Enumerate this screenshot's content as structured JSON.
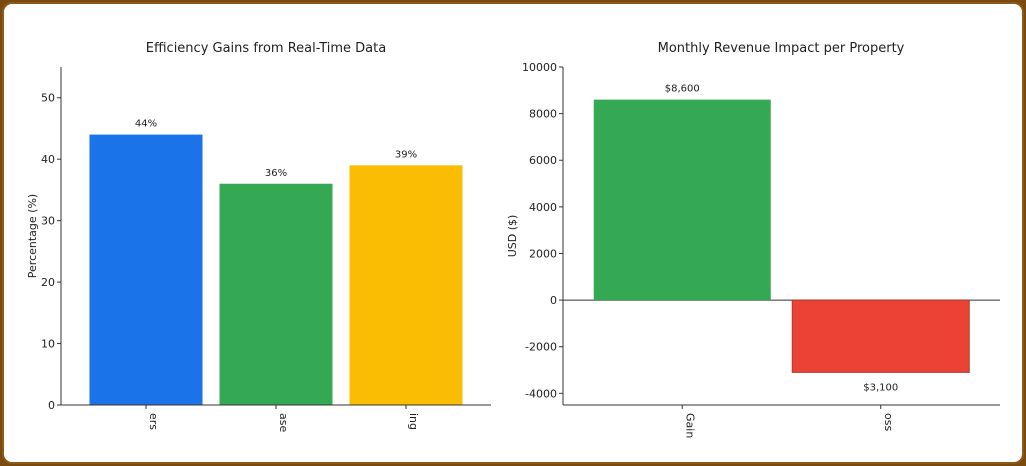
{
  "chart_data": [
    {
      "type": "bar",
      "title": "Efficiency Gains from Real-Time Data",
      "ylabel": "Percentage (%)",
      "xlabel": "",
      "ylim": [
        0,
        55
      ],
      "yticks": [
        0,
        10,
        20,
        30,
        40,
        50
      ],
      "categories": [
        "ers",
        "ase",
        "ing"
      ],
      "values": [
        44,
        36,
        39
      ],
      "data_labels": [
        "44%",
        "36%",
        "39%"
      ],
      "colors": [
        "#1a73e8",
        "#34a853",
        "#fbbc04"
      ],
      "grid": false
    },
    {
      "type": "bar",
      "title": "Monthly Revenue Impact per Property",
      "ylabel": "USD ($)",
      "xlabel": "",
      "ylim": [
        -4500,
        10000
      ],
      "yticks": [
        -4000,
        -2000,
        0,
        2000,
        4000,
        6000,
        8000,
        10000
      ],
      "categories": [
        "Gain",
        "oss"
      ],
      "values": [
        8600,
        -3100
      ],
      "data_labels": [
        "$8,600",
        "$3,100"
      ],
      "colors": [
        "#34a853",
        "#ea4335"
      ],
      "grid": false
    }
  ]
}
